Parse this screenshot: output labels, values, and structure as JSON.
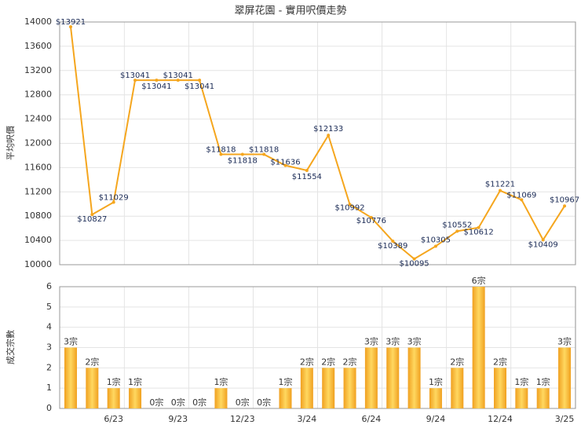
{
  "chart_data": [
    {
      "type": "line",
      "title": "翠屏花園 - 實用呎價走勢",
      "y_label": "平均呎價",
      "color": "#f5a61e",
      "values": [
        13921,
        10827,
        11029,
        13041,
        13041,
        13041,
        13041,
        11818,
        11818,
        11818,
        11636,
        11554,
        12133,
        10992,
        10776,
        10389,
        10095,
        10305,
        10552,
        10612,
        11221,
        11069,
        10409,
        10967
      ],
      "value_labels": [
        "$13921",
        "$10827",
        "$11029",
        "$13041",
        "$13041",
        "$13041",
        "$13041",
        "$11818",
        "$11818",
        "$11818",
        "$11636",
        "$11554",
        "$12133",
        "$10992",
        "$10776",
        "$10389",
        "$10095",
        "$10305",
        "$10552",
        "$10612",
        "$11221",
        "$11069",
        "$10409",
        "$10967"
      ],
      "ylim": [
        10000,
        14000
      ],
      "yticks": [
        10000,
        10400,
        10800,
        11200,
        11600,
        12000,
        12400,
        12800,
        13200,
        13600,
        14000
      ],
      "grid": true
    },
    {
      "type": "bar",
      "y_label": "成交宗數",
      "color": "#f3a81c",
      "categories": [
        null,
        null,
        "6/23",
        null,
        null,
        "9/23",
        null,
        null,
        "12/23",
        null,
        null,
        "3/24",
        null,
        null,
        "6/24",
        null,
        null,
        "9/24",
        null,
        null,
        "12/24",
        null,
        null,
        "3/25"
      ],
      "values": [
        3,
        2,
        1,
        1,
        0,
        0,
        0,
        1,
        0,
        0,
        1,
        2,
        2,
        2,
        3,
        3,
        3,
        1,
        2,
        6,
        2,
        1,
        1,
        3
      ],
      "value_labels": [
        "3宗",
        "2宗",
        "1宗",
        "1宗",
        "0宗",
        "0宗",
        "0宗",
        "1宗",
        "0宗",
        "0宗",
        "1宗",
        "2宗",
        "2宗",
        "2宗",
        "3宗",
        "3宗",
        "3宗",
        "1宗",
        "2宗",
        "6宗",
        "2宗",
        "1宗",
        "1宗",
        "3宗"
      ],
      "ylim": [
        0,
        6
      ],
      "yticks": [
        0,
        1,
        2,
        3,
        4,
        5,
        6
      ],
      "grid": true
    }
  ]
}
